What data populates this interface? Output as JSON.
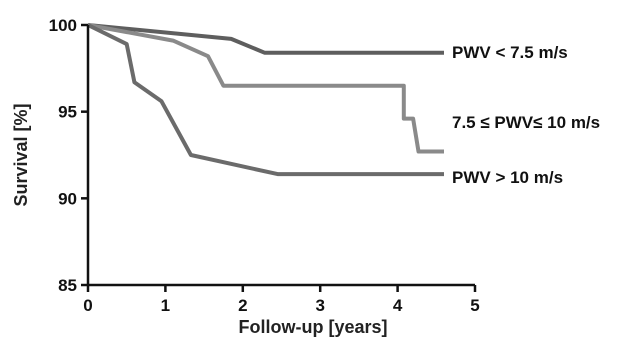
{
  "chart_data": {
    "type": "line",
    "xlabel": "Follow-up [years]",
    "ylabel": "Survival [%]",
    "xlim": [
      0,
      5
    ],
    "ylim": [
      85,
      100
    ],
    "x_ticks": [
      "0",
      "1",
      "2",
      "3",
      "4",
      "5"
    ],
    "y_ticks": [
      "85",
      "90",
      "95",
      "100"
    ],
    "grid": false,
    "series": [
      {
        "name": "PWV < 7.5 m/s",
        "color": "#5e5e5e",
        "x": [
          0,
          1.85,
          2.28,
          4.6
        ],
        "y": [
          100,
          99.2,
          98.4,
          98.4
        ]
      },
      {
        "name": "7.5 ≤ PWV≤ 10 m/s",
        "color": "#8a8a8a",
        "x": [
          0,
          1.1,
          1.55,
          1.75,
          4.08,
          4.08,
          4.2,
          4.2,
          4.27,
          4.6
        ],
        "y": [
          100,
          99.1,
          98.2,
          96.5,
          96.5,
          94.6,
          94.6,
          94.6,
          92.7,
          92.7
        ]
      },
      {
        "name": "PWV > 10 m/s",
        "color": "#6b6b6b",
        "x": [
          0,
          0.5,
          0.6,
          0.95,
          1.33,
          2.45,
          4.6
        ],
        "y": [
          100,
          98.9,
          96.7,
          95.6,
          92.5,
          91.4,
          91.4
        ]
      }
    ]
  }
}
